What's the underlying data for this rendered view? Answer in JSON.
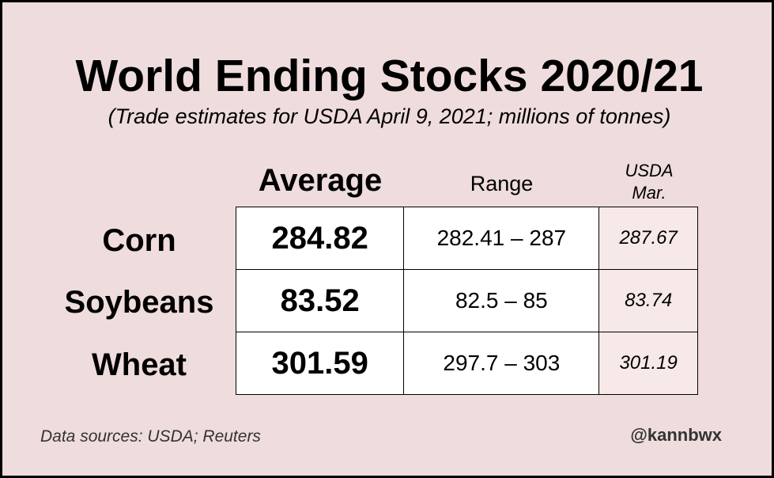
{
  "title": "World Ending Stocks 2020/21",
  "subtitle": "(Trade estimates for USDA April 9, 2021; millions of tonnes)",
  "columns": {
    "average": "Average",
    "range": "Range",
    "usda_line1": "USDA",
    "usda_line2": "Mar."
  },
  "rows": [
    {
      "label": "Corn",
      "average": "284.82",
      "range": "282.41 – 287",
      "usda_mar": "287.67"
    },
    {
      "label": "Soybeans",
      "average": "83.52",
      "range": "82.5 – 85",
      "usda_mar": "83.74"
    },
    {
      "label": "Wheat",
      "average": "301.59",
      "range": "297.7 – 303",
      "usda_mar": "301.19"
    }
  ],
  "footer": {
    "source": "Data sources: USDA; Reuters",
    "credit": "@kannbwx"
  },
  "colors": {
    "background": "#efdcdc",
    "cell": "#ffffff",
    "usda_cell": "#f8e9e9",
    "border": "#000000"
  },
  "chart_data": {
    "type": "table",
    "title": "World Ending Stocks 2020/21",
    "subtitle": "(Trade estimates for USDA April 9, 2021; millions of tonnes)",
    "columns": [
      "Average",
      "Range",
      "USDA Mar."
    ],
    "rows": [
      {
        "commodity": "Corn",
        "average": 284.82,
        "range": [
          282.41,
          287
        ],
        "usda_mar": 287.67
      },
      {
        "commodity": "Soybeans",
        "average": 83.52,
        "range": [
          82.5,
          85
        ],
        "usda_mar": 83.74
      },
      {
        "commodity": "Wheat",
        "average": 301.59,
        "range": [
          297.7,
          303
        ],
        "usda_mar": 301.19
      }
    ]
  }
}
